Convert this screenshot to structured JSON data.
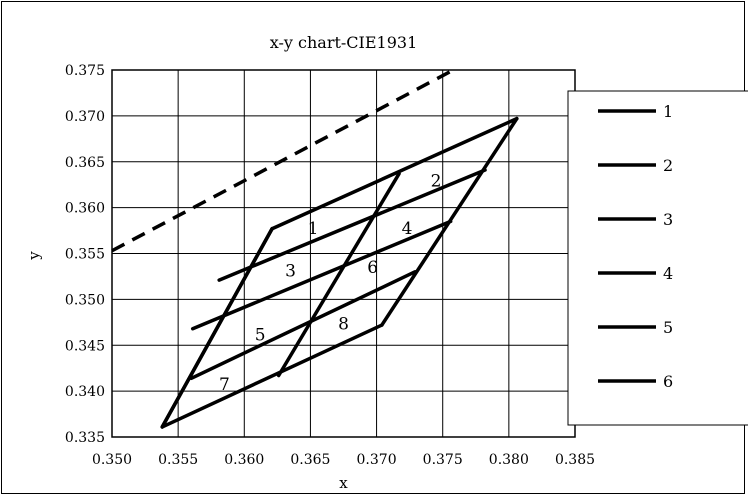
{
  "chart_data": {
    "type": "line",
    "title": "x-y chart-CIE1931",
    "xlabel": "x",
    "ylabel": "y",
    "xlim": [
      0.35,
      0.385
    ],
    "ylim": [
      0.335,
      0.375
    ],
    "x_ticks": [
      "0.350",
      "0.355",
      "0.360",
      "0.365",
      "0.370",
      "0.375",
      "0.380",
      "0.385"
    ],
    "y_ticks": [
      "0.335",
      "0.340",
      "0.345",
      "0.350",
      "0.355",
      "0.360",
      "0.365",
      "0.370",
      "0.375"
    ],
    "grid": true,
    "legend_position": "right",
    "series": [
      {
        "name": "1",
        "x": [
          0.3621,
          0.3806
        ],
        "y": [
          0.3577,
          0.3697
        ]
      },
      {
        "name": "2",
        "x": [
          0.3581,
          0.3782
        ],
        "y": [
          0.3521,
          0.3641
        ]
      },
      {
        "name": "3",
        "x": [
          0.3561,
          0.3756
        ],
        "y": [
          0.3468,
          0.3585
        ]
      },
      {
        "name": "4",
        "x": [
          0.356,
          0.3729
        ],
        "y": [
          0.3414,
          0.353
        ]
      },
      {
        "name": "5",
        "x": [
          0.3538,
          0.3704
        ],
        "y": [
          0.3361,
          0.3472
        ]
      },
      {
        "name": "6",
        "x": [
          0.3621,
          0.3538
        ],
        "y": [
          0.3577,
          0.3361
        ]
      }
    ],
    "extra_lines": [
      {
        "x": [
          0.3621,
          0.3538
        ],
        "y": [
          0.3577,
          0.3361
        ]
      },
      {
        "x": [
          0.3717,
          0.3626
        ],
        "y": [
          0.3637,
          0.3417
        ]
      },
      {
        "x": [
          0.3806,
          0.3704
        ],
        "y": [
          0.3697,
          0.3472
        ]
      }
    ],
    "dashed_line": {
      "x": [
        0.35,
        0.3758
      ],
      "y": [
        0.3553,
        0.375
      ]
    },
    "region_labels": [
      {
        "text": "1",
        "x": 0.3652,
        "y": 0.3571
      },
      {
        "text": "2",
        "x": 0.3745,
        "y": 0.3623
      },
      {
        "text": "3",
        "x": 0.3635,
        "y": 0.3525
      },
      {
        "text": "4",
        "x": 0.3723,
        "y": 0.3571
      },
      {
        "text": "5",
        "x": 0.3612,
        "y": 0.3455
      },
      {
        "text": "6",
        "x": 0.3697,
        "y": 0.3529
      },
      {
        "text": "7",
        "x": 0.3585,
        "y": 0.3401
      },
      {
        "text": "8",
        "x": 0.3675,
        "y": 0.3467
      }
    ]
  }
}
